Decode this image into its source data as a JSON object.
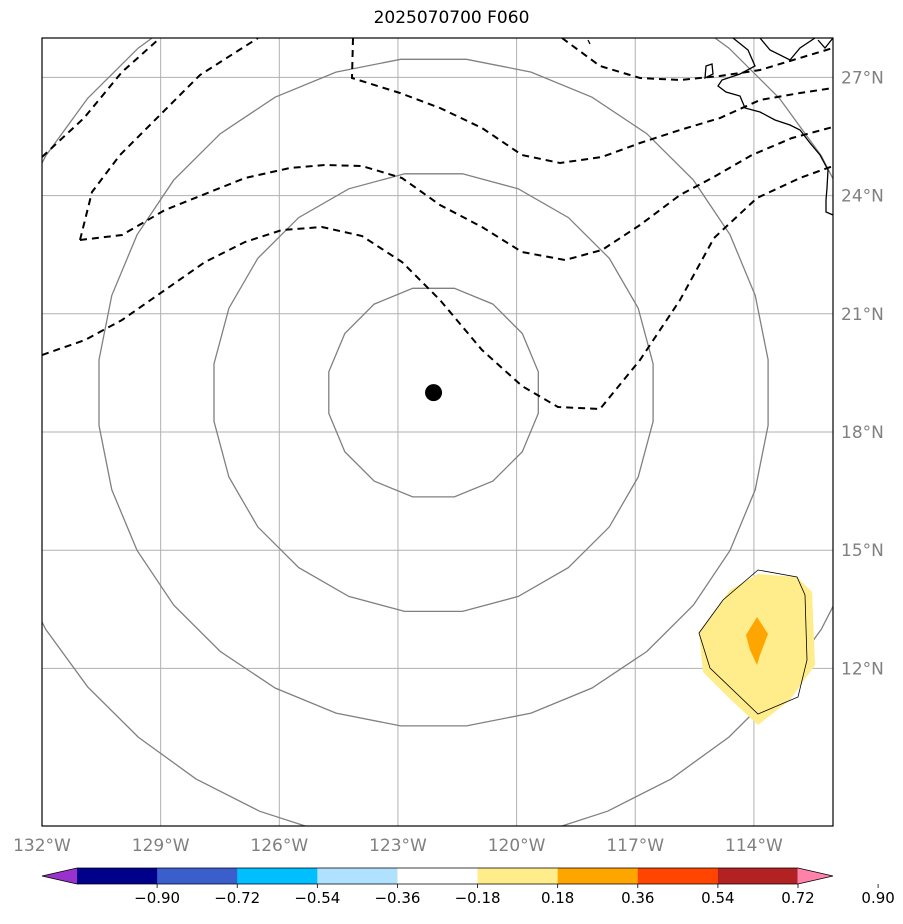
{
  "title": "2025070700 F060",
  "map": {
    "lon_range": [
      -132,
      -112
    ],
    "lat_range": [
      8,
      28
    ],
    "lon_ticks": [
      {
        "value": -132,
        "label": "132°W"
      },
      {
        "value": -129,
        "label": "129°W"
      },
      {
        "value": -126,
        "label": "126°W"
      },
      {
        "value": -123,
        "label": "123°W"
      },
      {
        "value": -120,
        "label": "120°W"
      },
      {
        "value": -117,
        "label": "117°W"
      },
      {
        "value": -114,
        "label": "114°W"
      }
    ],
    "lat_ticks": [
      {
        "value": 27,
        "label": "27°N"
      },
      {
        "value": 24,
        "label": "24°N"
      },
      {
        "value": 21,
        "label": "21°N"
      },
      {
        "value": 18,
        "label": "18°N"
      },
      {
        "value": 15,
        "label": "15°N"
      },
      {
        "value": 12,
        "label": "12°N"
      }
    ],
    "grid": true,
    "center_marker": {
      "lon": -122.1,
      "lat": 19.0
    },
    "range_rings_deg": [
      2.7,
      5.6,
      8.5,
      11.5
    ],
    "colors": {
      "grid": "#b0b0b0",
      "ring": "#808080",
      "dashed": "#000000",
      "coast": "#000000",
      "fill_low": "#ffec8b",
      "fill_high": "#ffa500"
    }
  },
  "colorbar": {
    "levels": [
      "−0.90",
      "−0.72",
      "−0.54",
      "−0.36",
      "−0.18",
      "0.18",
      "0.36",
      "0.54",
      "0.72",
      "0.90"
    ],
    "colors": [
      "#9932cc",
      "#00008b",
      "#3a5fcd",
      "#00bfff",
      "#b0e2ff",
      "#ffffff",
      "#ffec8b",
      "#ffa500",
      "#ff4500",
      "#b22222",
      "#ff82ab"
    ],
    "extend": "both"
  }
}
